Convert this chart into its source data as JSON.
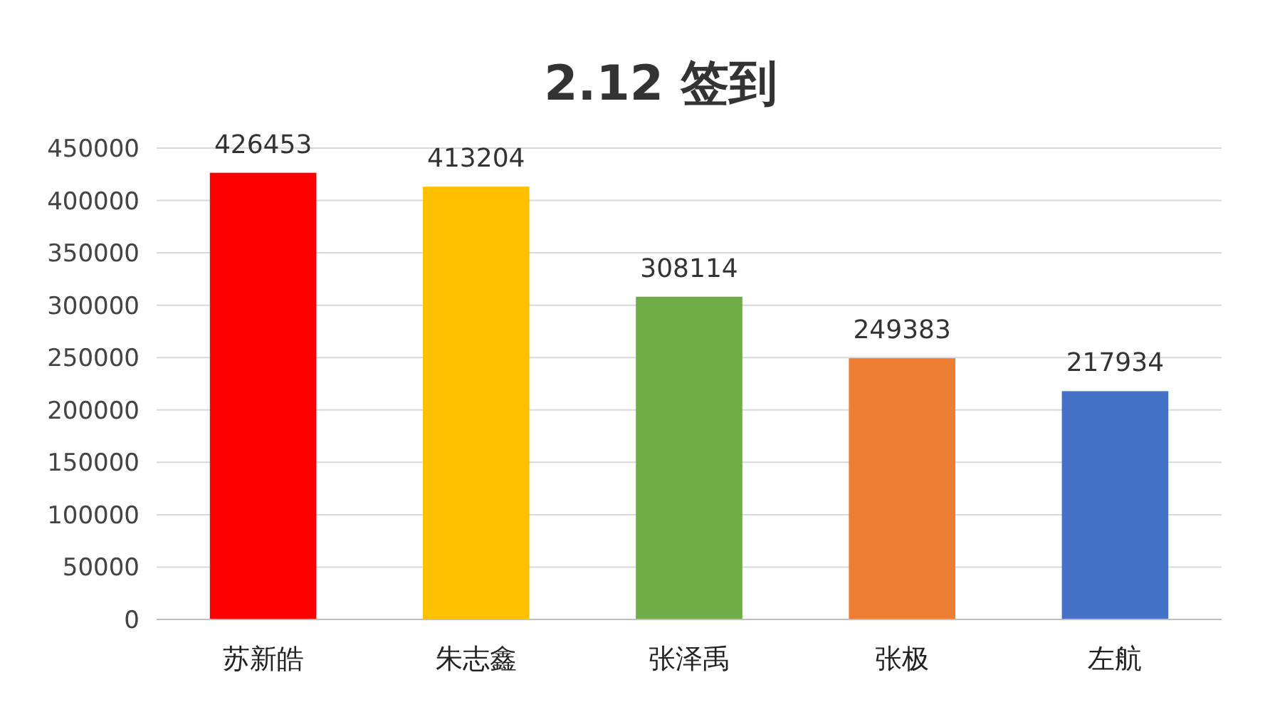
{
  "chart_data": {
    "type": "bar",
    "title": "2.12 签到",
    "categories": [
      "苏新皓",
      "朱志鑫",
      "张泽禹",
      "张极",
      "左航"
    ],
    "values": [
      426453,
      413204,
      308114,
      249383,
      217934
    ],
    "colors": [
      "#ff0000",
      "#ffc000",
      "#70ad47",
      "#ed7d31",
      "#4472c4"
    ],
    "ylim": [
      0,
      450000
    ],
    "yticks": [
      0,
      50000,
      100000,
      150000,
      200000,
      250000,
      300000,
      350000,
      400000,
      450000
    ],
    "grid": "y",
    "data_labels": true
  }
}
